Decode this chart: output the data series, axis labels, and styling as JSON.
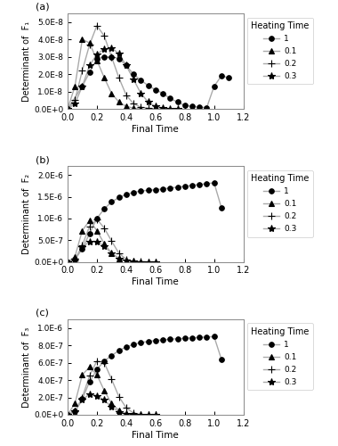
{
  "subplots": [
    {
      "label": "(a)",
      "ylabel": "Determinant of  F₁",
      "ylim": [
        0,
        5.5e-08
      ],
      "yticks": [
        0,
        1e-08,
        2e-08,
        3e-08,
        4e-08,
        5e-08
      ],
      "ytick_labels": [
        "0.0E+0",
        "1.0E-8",
        "2.0E-8",
        "3.0E-8",
        "4.0E-8",
        "5.0E-8"
      ],
      "series": [
        {
          "label": "1",
          "marker": "o",
          "color": "#666666",
          "x": [
            0.0,
            0.1,
            0.15,
            0.2,
            0.25,
            0.3,
            0.35,
            0.4,
            0.45,
            0.5,
            0.55,
            0.6,
            0.65,
            0.7,
            0.75,
            0.8,
            0.85,
            0.9,
            0.95,
            1.0,
            1.05,
            1.1
          ],
          "y": [
            0.0,
            1.3e-08,
            2.1e-08,
            2.9e-08,
            3e-08,
            3e-08,
            2.9e-08,
            2.5e-08,
            2e-08,
            1.65e-08,
            1.35e-08,
            1.1e-08,
            9e-09,
            6e-09,
            4e-09,
            2e-09,
            1.5e-09,
            1e-09,
            8e-10,
            1.3e-08,
            1.9e-08,
            1.8e-08
          ]
        },
        {
          "label": "0.1",
          "marker": "^",
          "color": "#999999",
          "x": [
            0.0,
            0.05,
            0.1,
            0.15,
            0.2,
            0.25,
            0.3,
            0.35,
            0.4,
            0.45,
            0.5
          ],
          "y": [
            0.0,
            1.3e-08,
            4e-08,
            3.8e-08,
            2.8e-08,
            1.8e-08,
            9e-09,
            4e-09,
            1.5e-09,
            5e-10,
            0.0
          ]
        },
        {
          "label": "0.2",
          "marker": "+",
          "color": "#999999",
          "x": [
            0.0,
            0.05,
            0.1,
            0.15,
            0.2,
            0.25,
            0.3,
            0.35,
            0.4,
            0.45,
            0.5,
            0.55,
            0.6,
            0.65
          ],
          "y": [
            0.0,
            5e-09,
            2.2e-08,
            3.7e-08,
            4.8e-08,
            4.2e-08,
            3e-08,
            1.8e-08,
            8e-09,
            3e-09,
            1e-09,
            5e-10,
            0.0,
            0.0
          ]
        },
        {
          "label": "0.3",
          "marker": "*",
          "color": "#999999",
          "x": [
            0.0,
            0.05,
            0.1,
            0.15,
            0.2,
            0.25,
            0.3,
            0.35,
            0.4,
            0.45,
            0.5,
            0.55,
            0.6,
            0.65,
            0.7,
            0.75
          ],
          "y": [
            0.0,
            3e-09,
            1.3e-08,
            2.5e-08,
            3.15e-08,
            3.45e-08,
            3.5e-08,
            3.2e-08,
            2.5e-08,
            1.7e-08,
            9e-09,
            4e-09,
            1.5e-09,
            5e-10,
            2e-10,
            0.0
          ]
        }
      ]
    },
    {
      "label": "(b)",
      "ylabel": "Determinant of  F₂",
      "ylim": [
        0,
        2.2e-06
      ],
      "yticks": [
        0,
        5e-07,
        1e-06,
        1.5e-06,
        2e-06
      ],
      "ytick_labels": [
        "0.0E+0",
        "5.0E-7",
        "1.0E-6",
        "1.5E-6",
        "2.0E-6"
      ],
      "series": [
        {
          "label": "1",
          "marker": "o",
          "color": "#666666",
          "x": [
            0.0,
            0.05,
            0.1,
            0.15,
            0.2,
            0.25,
            0.3,
            0.35,
            0.4,
            0.45,
            0.5,
            0.55,
            0.6,
            0.65,
            0.7,
            0.75,
            0.8,
            0.85,
            0.9,
            0.95,
            1.0,
            1.05
          ],
          "y": [
            0.0,
            5e-08,
            3e-07,
            6.5e-07,
            1e-06,
            1.22e-06,
            1.38e-06,
            1.48e-06,
            1.55e-06,
            1.6e-06,
            1.63e-06,
            1.65e-06,
            1.66e-06,
            1.68e-06,
            1.7e-06,
            1.72e-06,
            1.74e-06,
            1.76e-06,
            1.78e-06,
            1.8e-06,
            1.82e-06,
            1.25e-06
          ]
        },
        {
          "label": "0.1",
          "marker": "^",
          "color": "#999999",
          "x": [
            0.0,
            0.05,
            0.1,
            0.15,
            0.2,
            0.25,
            0.3,
            0.35,
            0.4,
            0.45,
            0.5
          ],
          "y": [
            0.0,
            1.2e-07,
            7.2e-07,
            9.5e-07,
            7.2e-07,
            4.2e-07,
            2e-07,
            8e-08,
            2e-08,
            5e-09,
            0.0
          ]
        },
        {
          "label": "0.2",
          "marker": "+",
          "color": "#999999",
          "x": [
            0.0,
            0.05,
            0.1,
            0.15,
            0.2,
            0.25,
            0.3,
            0.35,
            0.4,
            0.45,
            0.5,
            0.55,
            0.6
          ],
          "y": [
            0.0,
            4e-08,
            3.8e-07,
            8.2e-07,
            9.8e-07,
            7.8e-07,
            4.8e-07,
            2e-07,
            6e-08,
            1.5e-08,
            5e-09,
            0.0,
            0.0
          ]
        },
        {
          "label": "0.3",
          "marker": "*",
          "color": "#999999",
          "x": [
            0.0,
            0.05,
            0.1,
            0.15,
            0.2,
            0.25,
            0.3,
            0.35,
            0.4,
            0.45,
            0.5,
            0.55,
            0.6
          ],
          "y": [
            0.0,
            6e-08,
            3.5e-07,
            4.6e-07,
            4.7e-07,
            3.6e-07,
            2e-07,
            8e-08,
            2.5e-08,
            5e-09,
            1e-09,
            0.0,
            0.0
          ]
        }
      ]
    },
    {
      "label": "(c)",
      "ylabel": "Determinant of  F₃",
      "ylim": [
        0,
        1.1e-06
      ],
      "yticks": [
        0,
        2e-07,
        4e-07,
        6e-07,
        8e-07,
        1e-06
      ],
      "ytick_labels": [
        "0.0E+0",
        "2.0E-7",
        "4.0E-7",
        "6.0E-7",
        "8.0E-7",
        "1.0E-6"
      ],
      "series": [
        {
          "label": "1",
          "marker": "o",
          "color": "#666666",
          "x": [
            0.0,
            0.05,
            0.1,
            0.15,
            0.2,
            0.25,
            0.3,
            0.35,
            0.4,
            0.45,
            0.5,
            0.55,
            0.6,
            0.65,
            0.7,
            0.75,
            0.8,
            0.85,
            0.9,
            0.95,
            1.0,
            1.05
          ],
          "y": [
            0.0,
            4e-08,
            1.8e-07,
            3.8e-07,
            5.2e-07,
            6.2e-07,
            6.8e-07,
            7.4e-07,
            7.8e-07,
            8.1e-07,
            8.3e-07,
            8.45e-07,
            8.55e-07,
            8.63e-07,
            8.7e-07,
            8.75e-07,
            8.8e-07,
            8.85e-07,
            8.9e-07,
            8.95e-07,
            9e-07,
            6.4e-07
          ]
        },
        {
          "label": "0.1",
          "marker": "^",
          "color": "#999999",
          "x": [
            0.0,
            0.05,
            0.1,
            0.15,
            0.2,
            0.25,
            0.3,
            0.35,
            0.4,
            0.45,
            0.5
          ],
          "y": [
            0.0,
            1.3e-07,
            4.6e-07,
            5.5e-07,
            4.6e-07,
            2.8e-07,
            1.3e-07,
            5e-08,
            1.5e-08,
            4e-09,
            0.0
          ]
        },
        {
          "label": "0.2",
          "marker": "+",
          "color": "#999999",
          "x": [
            0.0,
            0.05,
            0.1,
            0.15,
            0.2,
            0.25,
            0.3,
            0.35,
            0.4,
            0.45,
            0.5,
            0.55,
            0.6
          ],
          "y": [
            0.0,
            4e-08,
            2e-07,
            4.5e-07,
            6.2e-07,
            6e-07,
            4.1e-07,
            2.1e-07,
            8e-08,
            2e-08,
            4e-09,
            0.0,
            0.0
          ]
        },
        {
          "label": "0.3",
          "marker": "*",
          "color": "#999999",
          "x": [
            0.0,
            0.05,
            0.1,
            0.15,
            0.2,
            0.25,
            0.3,
            0.35,
            0.4,
            0.45,
            0.5,
            0.55,
            0.6
          ],
          "y": [
            0.0,
            4e-08,
            1.7e-07,
            2.4e-07,
            2.2e-07,
            1.7e-07,
            9e-08,
            3.5e-08,
            1e-08,
            2e-09,
            0.0,
            0.0,
            0.0
          ]
        }
      ]
    }
  ],
  "xlim": [
    0,
    1.2
  ],
  "xticks": [
    0.0,
    0.2,
    0.4,
    0.6,
    0.8,
    1.0,
    1.2
  ],
  "xlabel": "Final Time",
  "legend_title": "Heating Time",
  "background_color": "#ffffff",
  "line_width": 1.0
}
